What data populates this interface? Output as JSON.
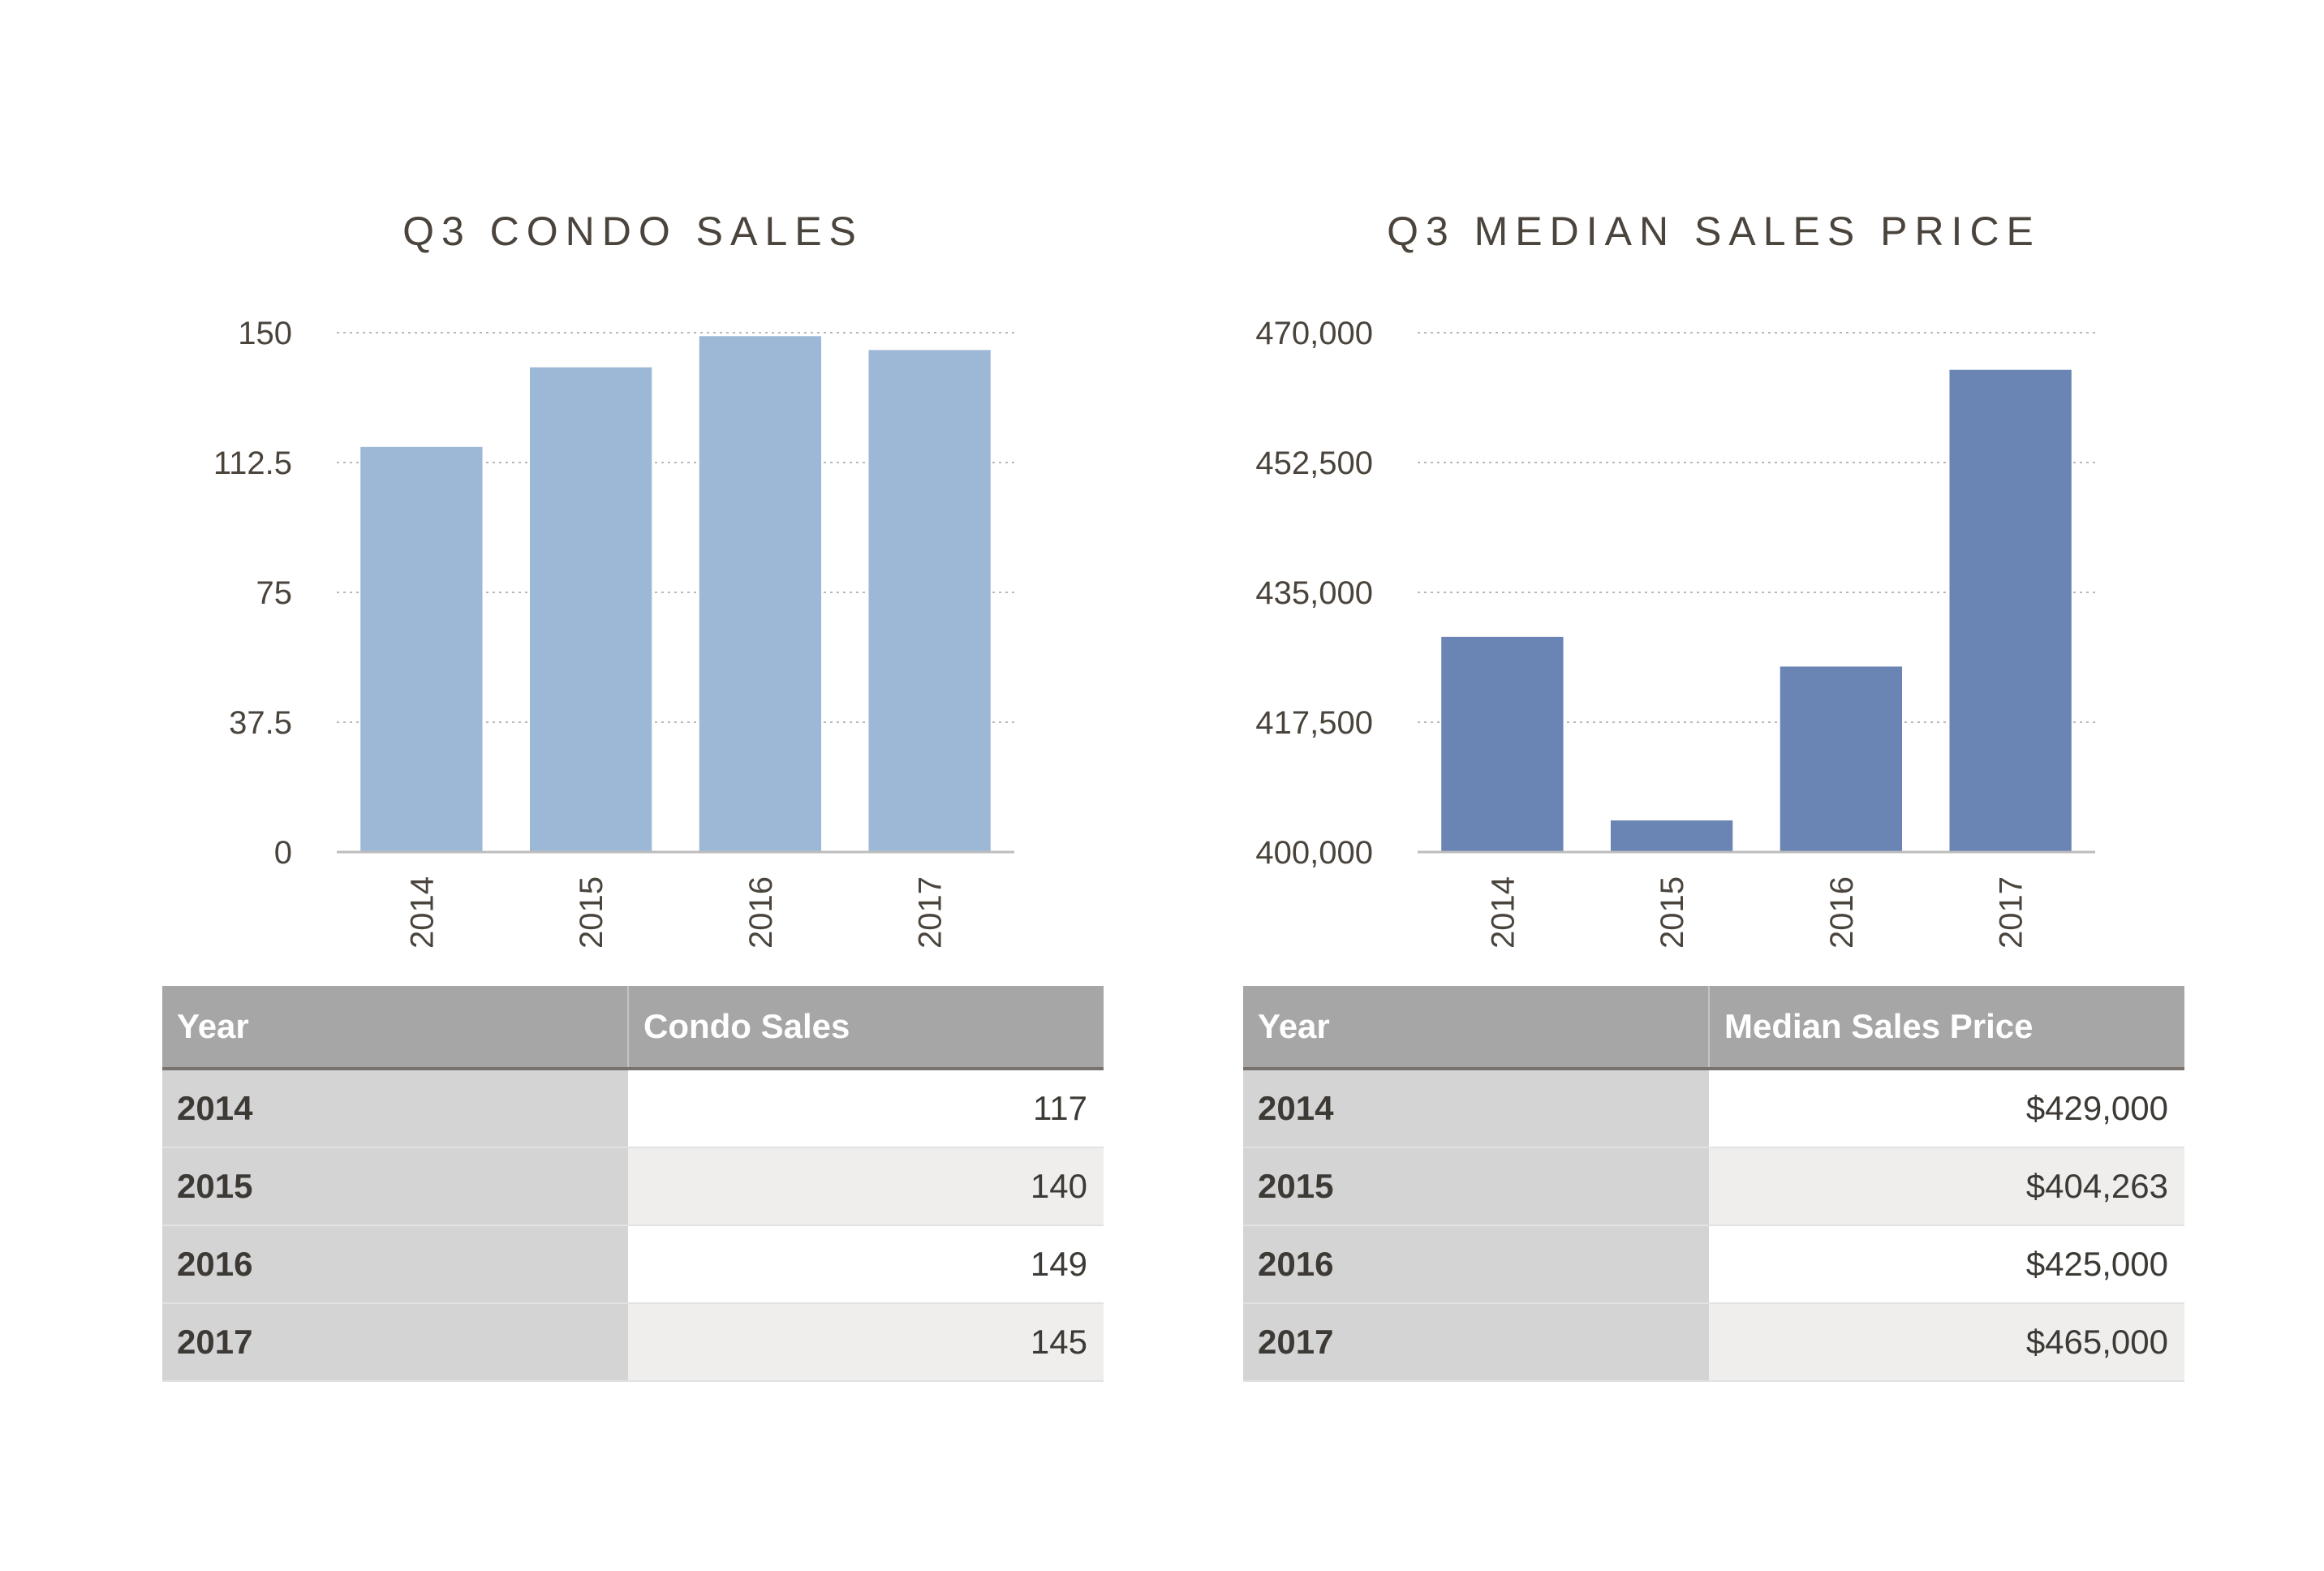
{
  "chart_data": [
    {
      "type": "bar",
      "title": "Q3 CONDO SALES",
      "categories": [
        "2014",
        "2015",
        "2016",
        "2017"
      ],
      "values": [
        117,
        140,
        149,
        145
      ],
      "ylim": [
        0,
        150
      ],
      "yticks": [
        "0",
        "37.5",
        "75",
        "112.5",
        "150"
      ],
      "ytick_values": [
        0,
        37.5,
        75,
        112.5,
        150
      ],
      "bar_color": "#9db8d7",
      "grid": true,
      "xlabel": "",
      "ylabel": ""
    },
    {
      "type": "bar",
      "title": "Q3 MEDIAN SALES PRICE",
      "categories": [
        "2014",
        "2015",
        "2016",
        "2017"
      ],
      "values": [
        429000,
        404263,
        425000,
        465000
      ],
      "ylim": [
        400000,
        470000
      ],
      "yticks": [
        "400,000",
        "417,500",
        "435,000",
        "452,500",
        "470,000"
      ],
      "ytick_values": [
        400000,
        417500,
        435000,
        452500,
        470000
      ],
      "bar_color": "#6a84b4",
      "grid": true,
      "xlabel": "",
      "ylabel": ""
    }
  ],
  "tables": [
    {
      "headers": [
        "Year",
        "Condo Sales"
      ],
      "rows": [
        {
          "year": "2014",
          "value": "117"
        },
        {
          "year": "2015",
          "value": "140"
        },
        {
          "year": "2016",
          "value": "149"
        },
        {
          "year": "2017",
          "value": "145"
        }
      ]
    },
    {
      "headers": [
        "Year",
        "Median Sales Price"
      ],
      "rows": [
        {
          "year": "2014",
          "value": "$429,000"
        },
        {
          "year": "2015",
          "value": "$404,263"
        },
        {
          "year": "2016",
          "value": "$425,000"
        },
        {
          "year": "2017",
          "value": "$465,000"
        }
      ]
    }
  ]
}
